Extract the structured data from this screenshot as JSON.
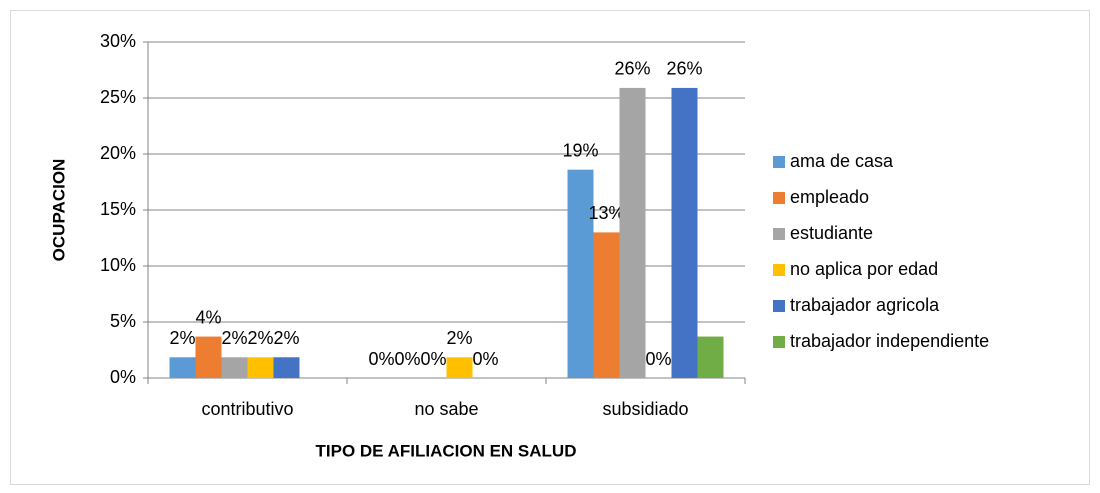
{
  "chart_data": {
    "type": "bar",
    "categories": [
      "contributivo",
      "no sabe",
      "subsidiado"
    ],
    "x_label": "TIPO DE AFILIACION EN SALUD",
    "y_label": "OCUPACION",
    "ylim": [
      0,
      30
    ],
    "yticks": [
      {
        "value": 0,
        "label": "0%"
      },
      {
        "value": 5,
        "label": "5%"
      },
      {
        "value": 10,
        "label": "10%"
      },
      {
        "value": 15,
        "label": "15%"
      },
      {
        "value": 20,
        "label": "20%"
      },
      {
        "value": 25,
        "label": "25%"
      },
      {
        "value": 30,
        "label": "30%"
      }
    ],
    "grid": true,
    "legend": "right",
    "series": [
      {
        "name": "ama de casa",
        "color": "#5b9bd5",
        "values": [
          1.85,
          0,
          18.6
        ],
        "value_labels": [
          "2%",
          "0%",
          "19%"
        ]
      },
      {
        "name": "empleado",
        "color": "#ed7d31",
        "values": [
          3.7,
          0,
          13
        ],
        "value_labels": [
          "4%",
          "0%",
          "13%"
        ]
      },
      {
        "name": "estudiante",
        "color": "#a5a5a5",
        "values": [
          1.85,
          0,
          25.9
        ],
        "value_labels": [
          "2%",
          "0%",
          "26%"
        ]
      },
      {
        "name": "no aplica por edad",
        "color": "#ffc000",
        "values": [
          1.85,
          1.85,
          0
        ],
        "value_labels": [
          "2%",
          "2%",
          "0%"
        ]
      },
      {
        "name": "trabajador agricola",
        "color": "#4472c4",
        "values": [
          1.85,
          0,
          25.9
        ],
        "value_labels": [
          "2%",
          "0%",
          "26%"
        ]
      },
      {
        "name": "trabajador independiente",
        "color": "#70ad47",
        "values": [
          null,
          null,
          3.7
        ],
        "value_labels": [
          null,
          null,
          null
        ]
      }
    ]
  }
}
